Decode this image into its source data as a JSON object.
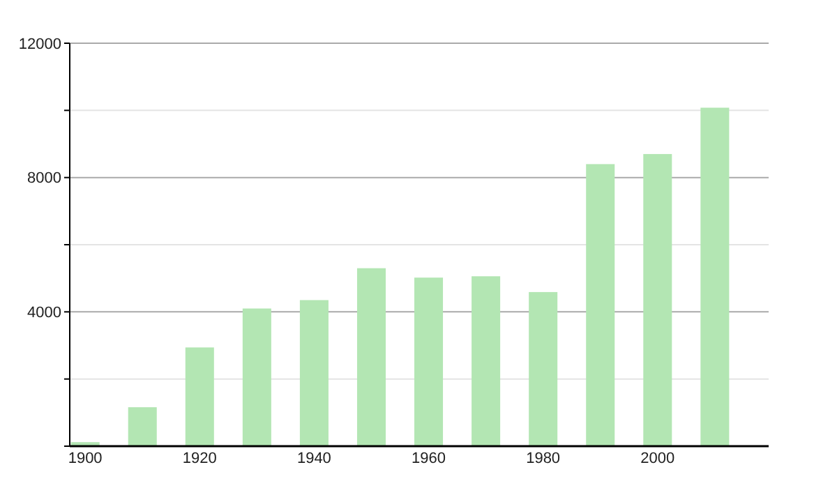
{
  "chart_data": {
    "type": "bar",
    "x": [
      1900,
      1910,
      1920,
      1930,
      1940,
      1950,
      1960,
      1970,
      1980,
      1990,
      2000,
      2010
    ],
    "values": [
      120,
      1160,
      2940,
      4100,
      4350,
      5300,
      5020,
      5060,
      4590,
      8400,
      8700,
      10080
    ],
    "color": "#b3e6b3",
    "xlim": [
      1897.3,
      2019.4
    ],
    "xticks": [
      1900,
      1920,
      1940,
      1960,
      1980,
      2000
    ],
    "ylim": [
      0,
      12000
    ],
    "yticks": [
      {
        "value": 0,
        "label": null
      },
      {
        "value": 2000,
        "label": null
      },
      4000,
      {
        "value": 6000,
        "label": null
      },
      8000,
      {
        "value": 10000,
        "label": null
      },
      12000
    ],
    "grid": "y"
  }
}
